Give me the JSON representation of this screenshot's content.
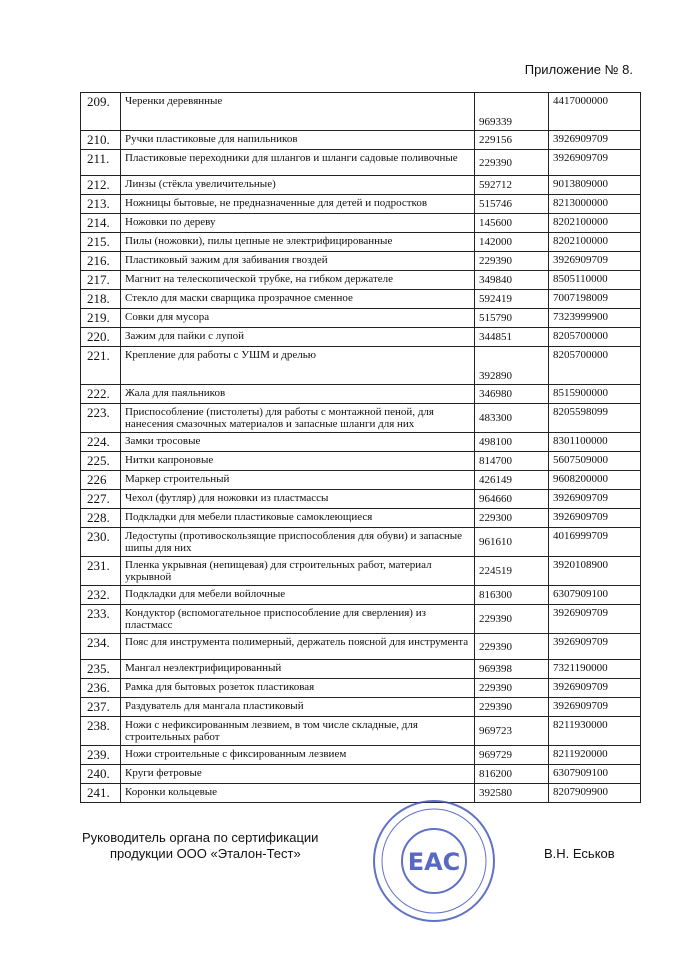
{
  "header": {
    "title": "Приложение № 8."
  },
  "table": {
    "rows": [
      [
        "209.",
        "Черенки деревянные",
        "969339",
        "4417000000"
      ],
      [
        "210.",
        "Ручки пластиковые для напильников",
        "229156",
        "3926909709"
      ],
      [
        "211.",
        "Пластиковые переходники для шлангов и шланги садовые поливочные",
        "229390",
        "3926909709"
      ],
      [
        "212.",
        "Линзы (стёкла увеличительные)",
        "592712",
        "9013809000"
      ],
      [
        "213.",
        "Ножницы бытовые, не предназначенные для детей и подростков",
        "515746",
        "8213000000"
      ],
      [
        "214.",
        "Ножовки по дереву",
        "145600",
        "8202100000"
      ],
      [
        "215.",
        "Пилы (ножовки), пилы цепные не электрифицированные",
        "142000",
        "8202100000"
      ],
      [
        "216.",
        "Пластиковый зажим для забивания гвоздей",
        "229390",
        "3926909709"
      ],
      [
        "217.",
        "Магнит на телескопической трубке, на гибком держателе",
        "349840",
        "8505110000"
      ],
      [
        "218.",
        "Стекло для маски сварщика прозрачное сменное",
        "592419",
        "7007198009"
      ],
      [
        "219.",
        "Совки для мусора",
        "515790",
        "7323999900"
      ],
      [
        "220.",
        "Зажим для пайки с лупой",
        "344851",
        "8205700000"
      ],
      [
        "221.",
        "Крепление для работы с УШМ и дрелью",
        "392890",
        "8205700000"
      ],
      [
        "222.",
        "Жала для паяльников",
        "346980",
        "8515900000"
      ],
      [
        "223.",
        "Приспособление (пистолеты) для работы с монтажной пеной, для нанесения смазочных материалов и запасные шланги для них",
        "483300",
        "8205598099"
      ],
      [
        "224.",
        "Замки тросовые",
        "498100",
        "8301100000"
      ],
      [
        "225.",
        "Нитки капроновые",
        "814700",
        "5607509000"
      ],
      [
        "226",
        "Маркер строительный",
        "426149",
        "9608200000"
      ],
      [
        "227.",
        "Чехол (футляр) для ножовки из пластмассы",
        "964660",
        "3926909709"
      ],
      [
        "228.",
        "Подкладки для мебели пластиковые самоклеющиеся",
        "229300",
        "3926909709"
      ],
      [
        "230.",
        "Ледоступы (противоскользящие приспособления для обуви) и запасные шипы для них",
        "961610",
        "4016999709"
      ],
      [
        "231.",
        "Пленка укрывная (непищевая) для строительных работ, материал укрывной",
        "224519",
        "3920108900"
      ],
      [
        "232.",
        "Подкладки для мебели войлочные",
        "816300",
        "6307909100"
      ],
      [
        "233.",
        "Кондуктор (вспомогательное приспособление для сверления) из пластмасс",
        "229390",
        "3926909709"
      ],
      [
        "234.",
        "Пояс для инструмента полимерный, держатель поясной для инструмента",
        "229390",
        "3926909709"
      ],
      [
        "235.",
        "Мангал неэлектрифицированный",
        "969398",
        "7321190000"
      ],
      [
        "236.",
        "Рамка для бытовых розеток пластиковая",
        "229390",
        "3926909709"
      ],
      [
        "237.",
        "Раздуватель для мангала пластиковый",
        "229390",
        "3926909709"
      ],
      [
        "238.",
        "Ножи с нефиксированным лезвием, в том числе складные, для строительных работ",
        "969723",
        "8211930000"
      ],
      [
        "239.",
        "Ножи строительные с фиксированным лезвием",
        "969729",
        "8211920000"
      ],
      [
        "240.",
        "Круги фетровые",
        "816200",
        "6307909100"
      ],
      [
        "241.",
        "Коронки кольцевые",
        "392580",
        "8207909900"
      ]
    ]
  },
  "footer": {
    "position_line1": "Руководитель органа по сертификации",
    "position_line2": "продукции ООО «Эталон-Тест»",
    "signer": "В.Н. Еськов"
  },
  "stamp": {
    "mark": "EAC"
  }
}
